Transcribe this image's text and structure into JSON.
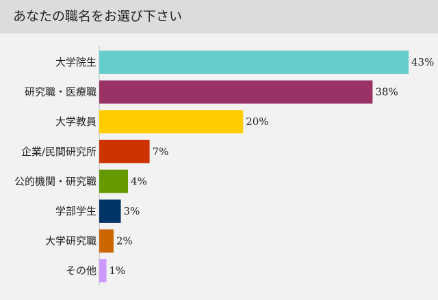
{
  "header": {
    "title": "あなたの職名をお選び下さい"
  },
  "chart_data": {
    "type": "bar",
    "orientation": "horizontal",
    "title": "あなたの職名をお選び下さい",
    "categories": [
      "大学院生",
      "研究職・医療職",
      "大学教員",
      "企業/民間研究所",
      "公的機関・研究職",
      "学部学生",
      "大学研究職",
      "その他"
    ],
    "values": [
      43,
      38,
      20,
      7,
      4,
      3,
      2,
      1
    ],
    "value_labels": [
      "43%",
      "38%",
      "20%",
      "7%",
      "4%",
      "3%",
      "2%",
      "1%"
    ],
    "unit": "%",
    "colors": [
      "#66cccc",
      "#993366",
      "#ffcc00",
      "#cc3300",
      "#669900",
      "#003366",
      "#cc6600",
      "#cc99ff"
    ],
    "xlim": [
      0,
      43
    ],
    "grid": false,
    "legend": "none"
  }
}
